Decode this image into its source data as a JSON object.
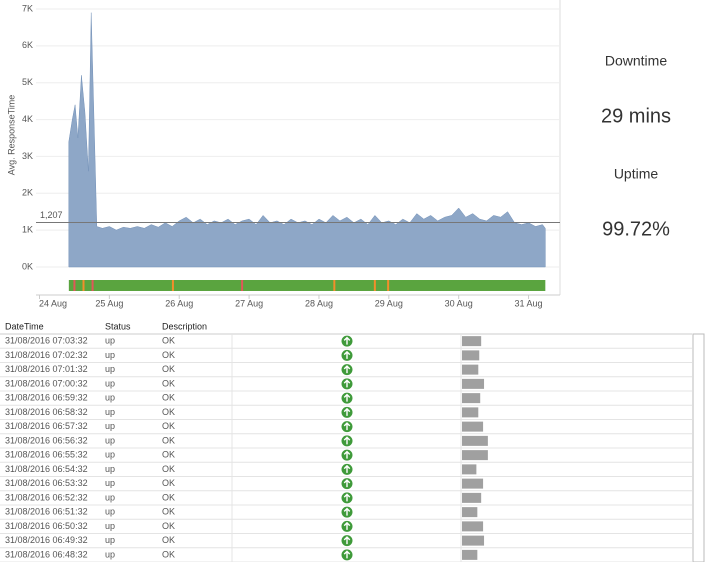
{
  "chart_data": {
    "type": "area",
    "y_label": "Avg. ResponseTime",
    "color": "#8ea7c7",
    "x": [
      24.42,
      24.47,
      24.51,
      24.55,
      24.6,
      24.65,
      24.7,
      24.74,
      24.78,
      24.82,
      24.9,
      25.0,
      25.1,
      25.2,
      25.3,
      25.4,
      25.5,
      25.6,
      25.7,
      25.8,
      25.9,
      26.0,
      26.1,
      26.2,
      26.3,
      26.4,
      26.5,
      26.6,
      26.7,
      26.8,
      26.9,
      27.0,
      27.1,
      27.2,
      27.3,
      27.4,
      27.5,
      27.6,
      27.7,
      27.8,
      27.9,
      28.0,
      28.1,
      28.2,
      28.3,
      28.4,
      28.5,
      28.6,
      28.7,
      28.8,
      28.9,
      29.0,
      29.1,
      29.2,
      29.3,
      29.4,
      29.5,
      29.6,
      29.7,
      29.8,
      29.9,
      30.0,
      30.1,
      30.2,
      30.3,
      30.4,
      30.5,
      30.6,
      30.7,
      30.8,
      30.9,
      31.0,
      31.1,
      31.2,
      31.24
    ],
    "values": [
      3400,
      4000,
      4400,
      3500,
      5200,
      4200,
      2600,
      6900,
      4000,
      1100,
      1050,
      1100,
      1000,
      1080,
      1050,
      1100,
      1050,
      1150,
      1080,
      1200,
      1100,
      1250,
      1350,
      1200,
      1300,
      1150,
      1250,
      1200,
      1300,
      1150,
      1250,
      1300,
      1150,
      1400,
      1200,
      1250,
      1150,
      1300,
      1200,
      1250,
      1150,
      1300,
      1200,
      1400,
      1250,
      1350,
      1200,
      1300,
      1150,
      1400,
      1200,
      1250,
      1150,
      1300,
      1200,
      1450,
      1300,
      1400,
      1250,
      1350,
      1400,
      1600,
      1350,
      1450,
      1300,
      1250,
      1400,
      1350,
      1500,
      1200,
      1150,
      1200,
      1100,
      1150,
      1050
    ],
    "xlim": [
      23.95,
      31.45
    ],
    "xticks": [
      {
        "value": 24,
        "label": "24 Aug"
      },
      {
        "value": 25,
        "label": "25 Aug"
      },
      {
        "value": 26,
        "label": "26 Aug"
      },
      {
        "value": 27,
        "label": "27 Aug"
      },
      {
        "value": 28,
        "label": "28 Aug"
      },
      {
        "value": 29,
        "label": "29 Aug"
      },
      {
        "value": 30,
        "label": "30 Aug"
      },
      {
        "value": 31,
        "label": "31 Aug"
      }
    ],
    "ylim": [
      0,
      7000
    ],
    "yticks": [
      {
        "value": 0,
        "label": "0K"
      },
      {
        "value": 1000,
        "label": "1K"
      },
      {
        "value": 2000,
        "label": "2K"
      },
      {
        "value": 3000,
        "label": "3K"
      },
      {
        "value": 4000,
        "label": "4K"
      },
      {
        "value": 5000,
        "label": "5K"
      },
      {
        "value": 6000,
        "label": "6K"
      },
      {
        "value": 7000,
        "label": "7K"
      }
    ],
    "grid": true,
    "reference_line": {
      "value": 1207,
      "label": "1,207"
    },
    "status_strip": {
      "xlim": [
        24.42,
        31.24
      ],
      "color": "#5aa43f",
      "events": [
        {
          "x": 24.5,
          "color": "#e15759"
        },
        {
          "x": 24.63,
          "color": "#f28e2b"
        },
        {
          "x": 24.76,
          "color": "#e15759"
        },
        {
          "x": 25.91,
          "color": "#f28e2b"
        },
        {
          "x": 26.9,
          "color": "#e15759"
        },
        {
          "x": 28.22,
          "color": "#f28e2b"
        },
        {
          "x": 28.8,
          "color": "#f28e2b"
        },
        {
          "x": 28.99,
          "color": "#f28e2b"
        }
      ]
    }
  },
  "kpis": [
    {
      "label": "Downtime",
      "value": "29 mins"
    },
    {
      "label": "Uptime",
      "value": "99.72%"
    }
  ],
  "table": {
    "columns": [
      "DateTime",
      "Status",
      "Description"
    ],
    "rows": [
      [
        "31/08/2016 07:03:32",
        "up",
        "OK"
      ],
      [
        "31/08/2016 07:02:32",
        "up",
        "OK"
      ],
      [
        "31/08/2016 07:01:32",
        "up",
        "OK"
      ],
      [
        "31/08/2016 07:00:32",
        "up",
        "OK"
      ],
      [
        "31/08/2016 06:59:32",
        "up",
        "OK"
      ],
      [
        "31/08/2016 06:58:32",
        "up",
        "OK"
      ],
      [
        "31/08/2016 06:57:32",
        "up",
        "OK"
      ],
      [
        "31/08/2016 06:56:32",
        "up",
        "OK"
      ],
      [
        "31/08/2016 06:55:32",
        "up",
        "OK"
      ],
      [
        "31/08/2016 06:54:32",
        "up",
        "OK"
      ],
      [
        "31/08/2016 06:53:32",
        "up",
        "OK"
      ],
      [
        "31/08/2016 06:52:32",
        "up",
        "OK"
      ],
      [
        "31/08/2016 06:51:32",
        "up",
        "OK"
      ],
      [
        "31/08/2016 06:50:32",
        "up",
        "OK"
      ],
      [
        "31/08/2016 06:49:32",
        "up",
        "OK"
      ],
      [
        "31/08/2016 06:48:32",
        "up",
        "OK"
      ]
    ],
    "response_time": [
      1000,
      900,
      850,
      1150,
      950,
      850,
      1100,
      1350,
      1350,
      750,
      1100,
      1000,
      800,
      1100,
      1150,
      800
    ],
    "response_time_xlim": [
      0,
      12000
    ],
    "bar_color": "#a0a0a0"
  }
}
